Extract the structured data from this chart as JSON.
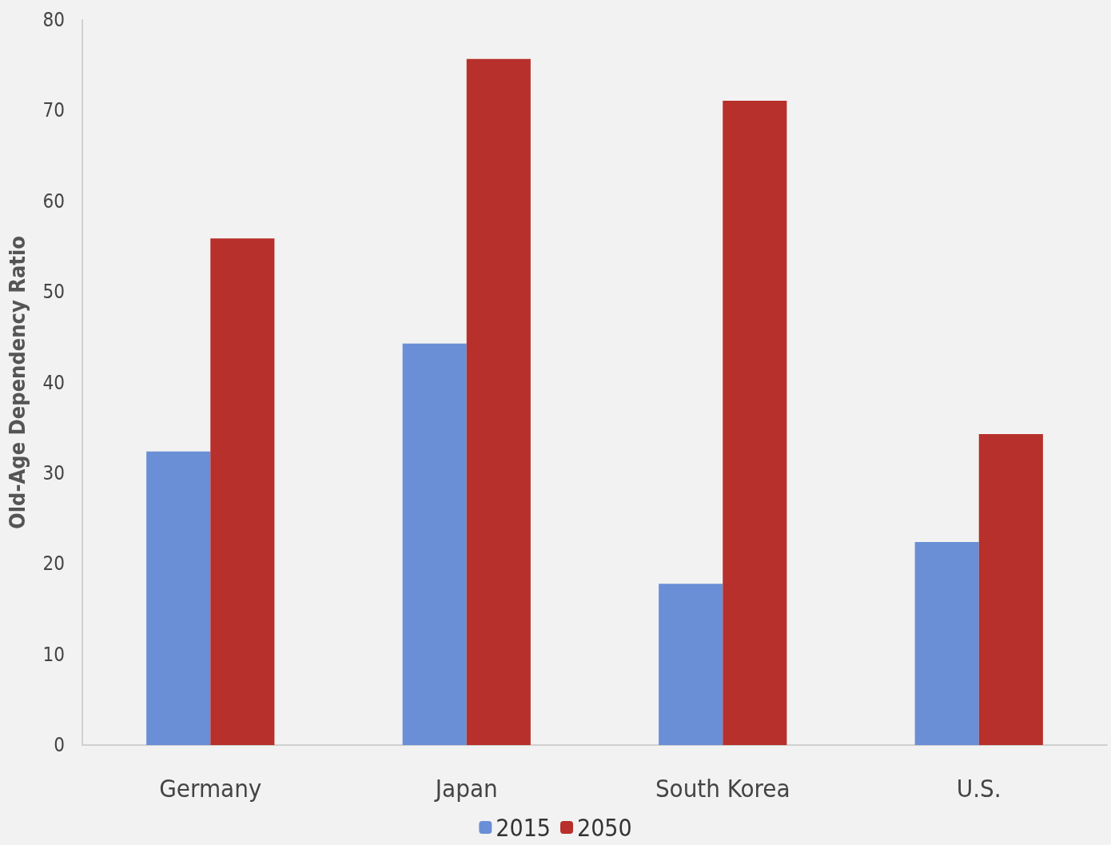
{
  "chart_data": {
    "type": "bar",
    "ylabel": "Old-Age Dependency Ratio",
    "categories": [
      "Germany",
      "Japan",
      "South Korea",
      "U.S."
    ],
    "series": [
      {
        "name": "2015",
        "color": "#6a8fd6",
        "values": [
          32.4,
          44.3,
          17.8,
          22.4
        ]
      },
      {
        "name": "2050",
        "color": "#b8302b",
        "values": [
          55.9,
          75.7,
          71.1,
          34.3
        ]
      }
    ],
    "ylim": [
      0,
      80
    ],
    "yticks": [
      0,
      10,
      20,
      30,
      40,
      50,
      60,
      70,
      80
    ],
    "grid": false,
    "legend": "bottom"
  }
}
